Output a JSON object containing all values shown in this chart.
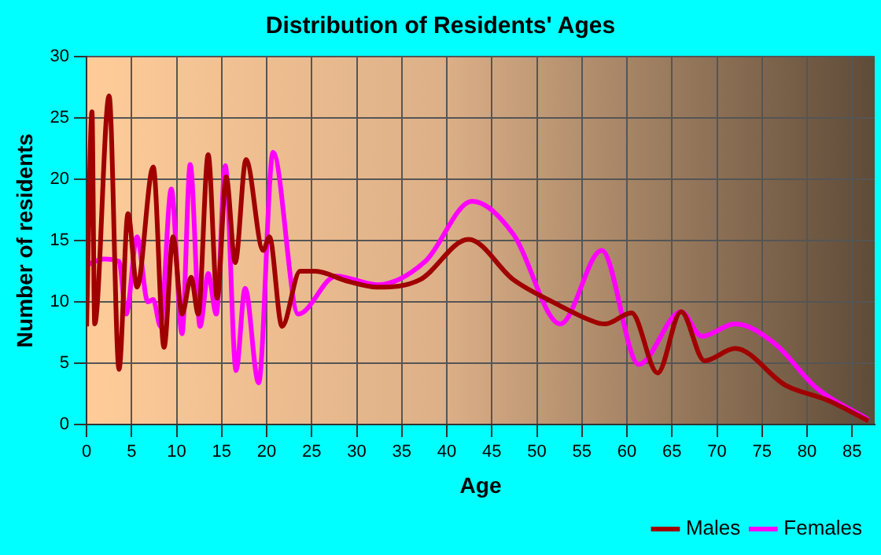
{
  "chart_data": {
    "type": "line",
    "title": "Distribution of Residents' Ages",
    "xlabel": "Age",
    "ylabel": "Number of residents",
    "xlim": [
      0,
      87.5
    ],
    "xticks": [
      0,
      5,
      10,
      15,
      20,
      25,
      30,
      35,
      40,
      45,
      50,
      55,
      60,
      65,
      70,
      75,
      80,
      85
    ],
    "ylim": [
      0,
      30
    ],
    "yticks": [
      0,
      5,
      10,
      15,
      20,
      25,
      30
    ],
    "grid": true,
    "legend": "bottom right",
    "marker": "none",
    "line_style": "solid",
    "series": [
      {
        "name": "Males",
        "color": "#a00000",
        "x": [
          0,
          0.6,
          0.9,
          2.5,
          3.6,
          4.6,
          5.6,
          7.4,
          8.6,
          9.6,
          10.6,
          11.6,
          12.4,
          13.5,
          14.5,
          15.5,
          16.5,
          17.7,
          19.6,
          20.3,
          21.7,
          23.7,
          25.4,
          28.9,
          32.3,
          37,
          42.4,
          47.4,
          52,
          56.7,
          57.6,
          60.5,
          63.4,
          66,
          68.6,
          72,
          77.6,
          82.2,
          86.8
        ],
        "values": [
          8,
          25.5,
          8.2,
          26.8,
          4.5,
          17.2,
          11.2,
          21,
          6.3,
          15.3,
          9,
          12,
          9,
          22,
          10.3,
          20.2,
          13.2,
          21.6,
          14.2,
          15.3,
          8,
          12.5,
          12.5,
          11.7,
          11.2,
          11.8,
          15.1,
          11.8,
          9.9,
          8.3,
          8.2,
          9.1,
          4.2,
          9.2,
          5.2,
          6.2,
          3.2,
          2,
          0.3
        ]
      },
      {
        "name": "Females",
        "color": "#ff00ff",
        "x": [
          0,
          1.9,
          3.6,
          4.4,
          5.6,
          6.8,
          7.4,
          8.2,
          9.4,
          10.6,
          11.5,
          12.6,
          13.5,
          14.4,
          15.4,
          16.6,
          17.6,
          19.1,
          20.7,
          23.5,
          27.7,
          32.3,
          37.6,
          42.8,
          47.4,
          52.6,
          57.2,
          61.3,
          66,
          68.3,
          72,
          76.4,
          81,
          86.8
        ],
        "values": [
          13,
          13.5,
          13.3,
          9,
          15.3,
          10,
          10.2,
          8,
          19.2,
          7.4,
          21.2,
          8,
          12.3,
          9,
          21.1,
          4.4,
          11.1,
          3.4,
          22.2,
          9,
          12.1,
          11.4,
          13.3,
          18.2,
          15.5,
          8.2,
          14.2,
          4.9,
          9.2,
          7.2,
          8.2,
          6.6,
          3,
          0.4
        ]
      }
    ]
  }
}
